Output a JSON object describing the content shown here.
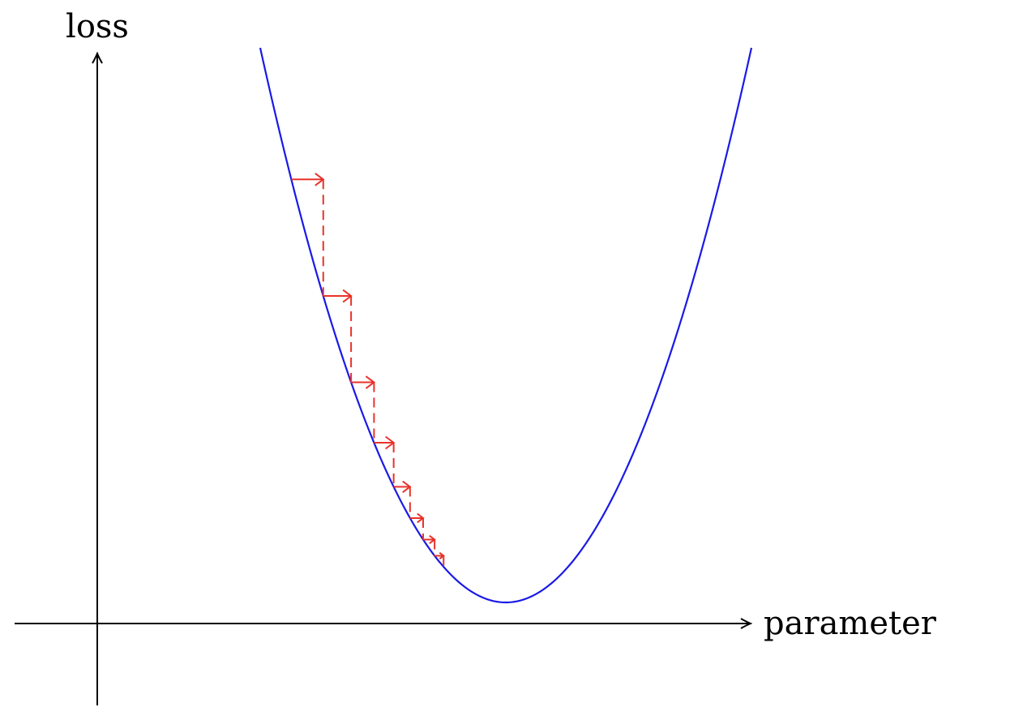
{
  "axes": {
    "x_label": "parameter",
    "y_label": "loss"
  },
  "colors": {
    "curve": "#1a1ae6",
    "steps": "#e8332a",
    "axis": "#000000"
  },
  "curve": {
    "x_range": [
      -3.0,
      3.0
    ],
    "minimum": {
      "x": 0,
      "y": 0.0
    }
  },
  "steps": [
    {
      "from": -2.62,
      "to": -2.23
    },
    {
      "from": -2.23,
      "to": -1.89
    },
    {
      "from": -1.89,
      "to": -1.61
    },
    {
      "from": -1.61,
      "to": -1.37
    },
    {
      "from": -1.37,
      "to": -1.17
    },
    {
      "from": -1.17,
      "to": -1.01
    },
    {
      "from": -1.01,
      "to": -0.87
    },
    {
      "from": -0.87,
      "to": -0.76
    }
  ]
}
